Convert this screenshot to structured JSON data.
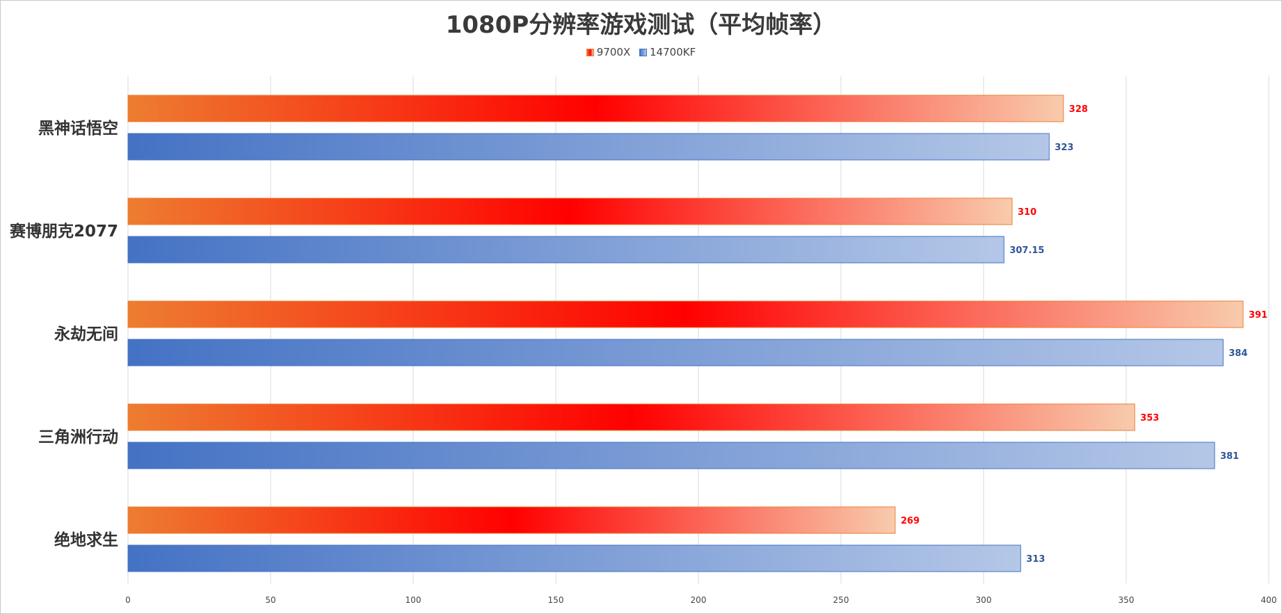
{
  "chart_data": {
    "type": "bar",
    "orientation": "horizontal",
    "title": "1080P分辨率游戏测试（平均帧率）",
    "categories": [
      "黑神话悟空",
      "赛博朋克2077",
      "永劫无间",
      "三角洲行动",
      "绝地求生"
    ],
    "series": [
      {
        "name": "9700X",
        "values": [
          328,
          310,
          391,
          353,
          269
        ],
        "color": "#ff0000"
      },
      {
        "name": "14700KF",
        "values": [
          323,
          307.15,
          384,
          381,
          313
        ],
        "color": "#4472c4"
      }
    ],
    "value_labels": {
      "9700X": [
        "328",
        "310",
        "391",
        "353",
        "269"
      ],
      "14700KF": [
        "323",
        "307.15",
        "384",
        "381",
        "313"
      ]
    },
    "xlim": [
      0,
      400
    ],
    "xticks": [
      "0",
      "50",
      "100",
      "150",
      "200",
      "250",
      "300",
      "350",
      "400"
    ],
    "grid": "vertical",
    "legend": "top"
  }
}
